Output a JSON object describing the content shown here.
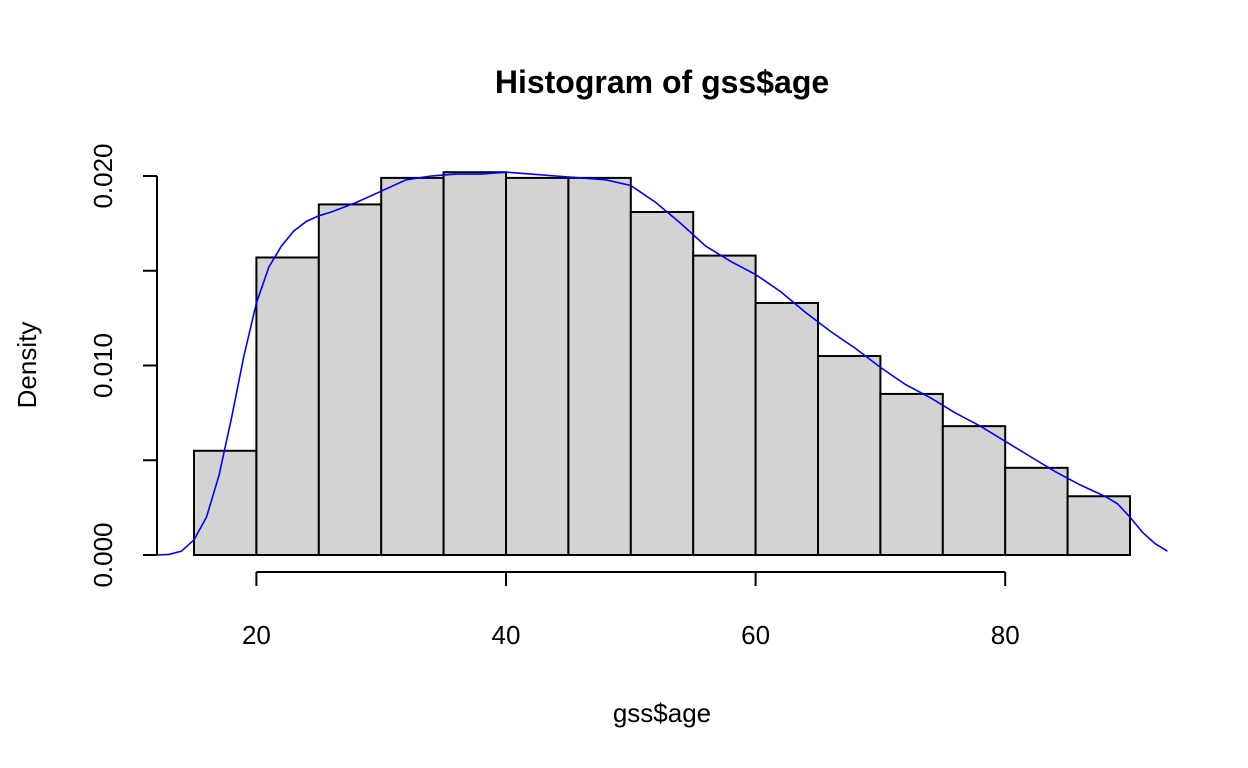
{
  "chart_data": {
    "type": "bar",
    "title": "Histogram of gss$age",
    "xlabel": "gss$age",
    "ylabel": "Density",
    "xlim": [
      15,
      90
    ],
    "ylim": [
      0,
      0.02
    ],
    "x_ticks": [
      20,
      40,
      60,
      80
    ],
    "x_tick_labels": [
      "20",
      "40",
      "60",
      "80"
    ],
    "y_ticks": [
      0.0,
      0.005,
      0.01,
      0.015,
      0.02
    ],
    "y_tick_labels": [
      "0.000",
      "",
      "0.010",
      "",
      "0.020"
    ],
    "bins": [
      {
        "start": 15,
        "end": 20,
        "density": 0.0055
      },
      {
        "start": 20,
        "end": 25,
        "density": 0.0157
      },
      {
        "start": 25,
        "end": 30,
        "density": 0.0185
      },
      {
        "start": 30,
        "end": 35,
        "density": 0.0199
      },
      {
        "start": 35,
        "end": 40,
        "density": 0.0202
      },
      {
        "start": 40,
        "end": 45,
        "density": 0.0199
      },
      {
        "start": 45,
        "end": 50,
        "density": 0.0199
      },
      {
        "start": 50,
        "end": 55,
        "density": 0.0181
      },
      {
        "start": 55,
        "end": 60,
        "density": 0.0158
      },
      {
        "start": 60,
        "end": 65,
        "density": 0.0133
      },
      {
        "start": 65,
        "end": 70,
        "density": 0.0105
      },
      {
        "start": 70,
        "end": 75,
        "density": 0.0085
      },
      {
        "start": 75,
        "end": 80,
        "density": 0.0068
      },
      {
        "start": 80,
        "end": 85,
        "density": 0.0046
      },
      {
        "start": 85,
        "end": 90,
        "density": 0.0031
      }
    ],
    "density_curve": {
      "x": [
        12,
        13,
        14,
        15,
        16,
        17,
        18,
        19,
        20,
        21,
        22,
        23,
        24,
        25,
        26,
        28,
        30,
        32,
        34,
        36,
        38,
        40,
        42,
        44,
        46,
        48,
        50,
        52,
        54,
        56,
        58,
        60,
        62,
        64,
        66,
        68,
        70,
        72,
        74,
        76,
        78,
        80,
        82,
        84,
        86,
        88,
        89,
        90,
        91,
        92,
        93
      ],
      "y": [
        0.0,
        3e-05,
        0.0002,
        0.0008,
        0.002,
        0.0042,
        0.0072,
        0.0105,
        0.0133,
        0.0152,
        0.0163,
        0.0171,
        0.0176,
        0.0179,
        0.0181,
        0.0186,
        0.0192,
        0.0198,
        0.02,
        0.0201,
        0.0201,
        0.0202,
        0.0201,
        0.02,
        0.0199,
        0.0198,
        0.0195,
        0.0186,
        0.0175,
        0.0163,
        0.0155,
        0.0148,
        0.0139,
        0.0128,
        0.0118,
        0.0109,
        0.0099,
        0.009,
        0.0083,
        0.0075,
        0.0068,
        0.006,
        0.0052,
        0.0044,
        0.0037,
        0.0031,
        0.0027,
        0.002,
        0.0012,
        0.0006,
        0.0002
      ]
    },
    "colors": {
      "bar_fill": "#d3d3d3",
      "bar_stroke": "#000000",
      "density_line": "#0000ff",
      "axis": "#000000"
    },
    "grid": false
  }
}
